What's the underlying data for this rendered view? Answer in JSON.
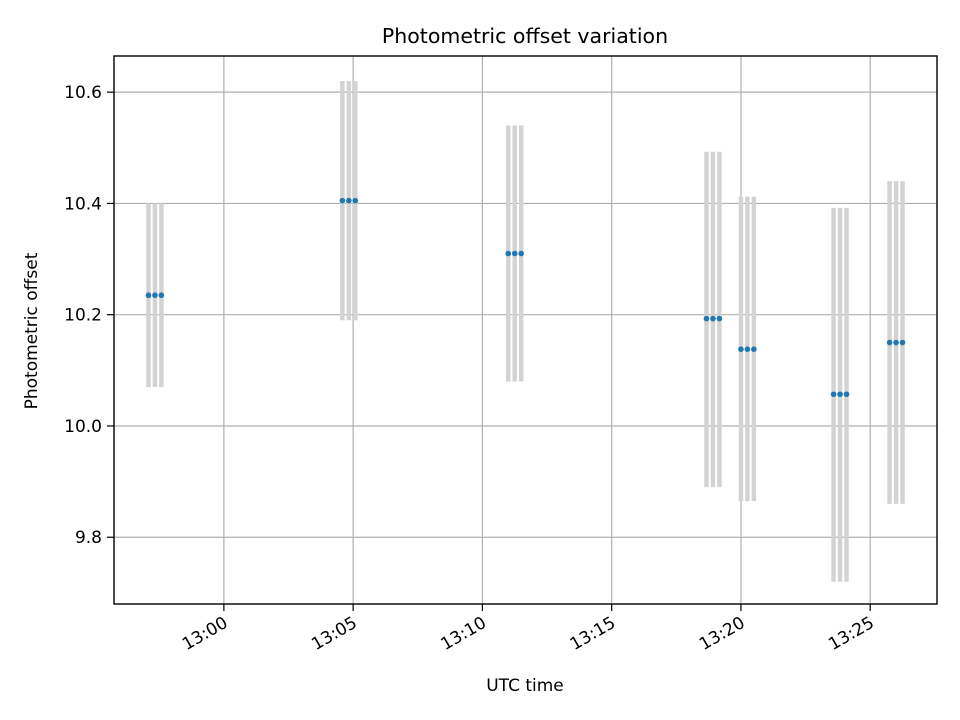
{
  "chart_data": {
    "type": "scatter",
    "title": "Photometric offset variation",
    "xlabel": "UTC time",
    "ylabel": "Photometric offset",
    "xlim": [
      "12:55:45",
      "13:27:35"
    ],
    "ylim": [
      9.68,
      10.665
    ],
    "x_ticks": [
      "13:00",
      "13:05",
      "13:10",
      "13:15",
      "13:20",
      "13:25"
    ],
    "y_ticks": [
      "9.8",
      "10.0",
      "10.2",
      "10.4",
      "10.6"
    ],
    "grid": true,
    "series": [
      {
        "color": "#1f77b4",
        "errorbar_color": "#d3d3d3",
        "points": [
          {
            "t": [
              "12:57:05",
              "12:57:20",
              "12:57:35"
            ],
            "value": 10.235,
            "low": 10.07,
            "high": 10.4
          },
          {
            "t": [
              "13:04:35",
              "13:04:50",
              "13:05:05"
            ],
            "value": 10.405,
            "low": 10.19,
            "high": 10.62
          },
          {
            "t": [
              "13:11:00",
              "13:11:15",
              "13:11:30"
            ],
            "value": 10.31,
            "low": 10.08,
            "high": 10.54
          },
          {
            "t": [
              "13:18:40",
              "13:18:55",
              "13:19:10"
            ],
            "value": 10.193,
            "low": 9.89,
            "high": 10.493
          },
          {
            "t": [
              "13:20:00",
              "13:20:15",
              "13:20:30"
            ],
            "value": 10.138,
            "low": 9.865,
            "high": 10.412
          },
          {
            "t": [
              "13:23:35",
              "13:23:50",
              "13:24:05"
            ],
            "value": 10.057,
            "low": 9.72,
            "high": 10.392
          },
          {
            "t": [
              "13:25:45",
              "13:26:00",
              "13:26:15"
            ],
            "value": 10.15,
            "low": 9.86,
            "high": 10.44
          }
        ]
      }
    ]
  }
}
